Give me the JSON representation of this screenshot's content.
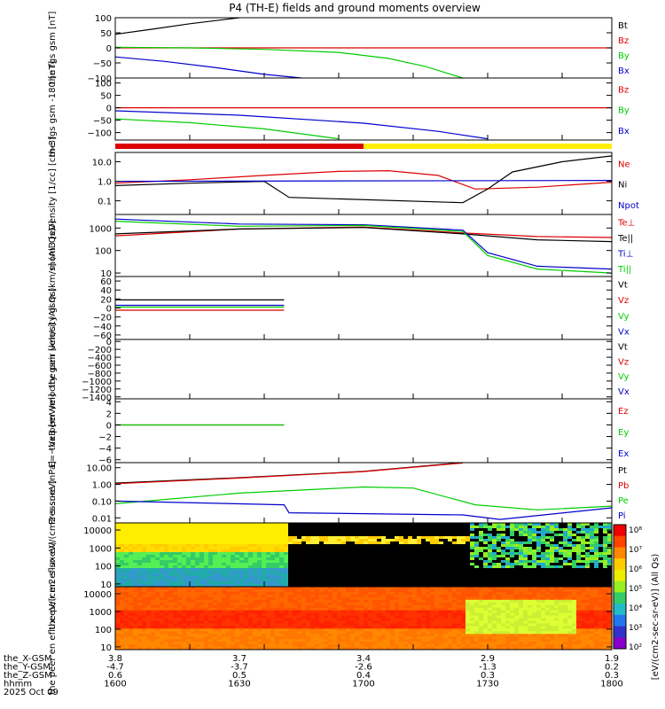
{
  "title": "P4 (TH-E) fields and ground moments overview",
  "footer": {
    "rows": [
      {
        "label": "the_X-GSM",
        "values": [
          "3.8",
          "3.7",
          "3.4",
          "2.9",
          "1.9"
        ]
      },
      {
        "label": "the_Y-GSM",
        "values": [
          "-4.7",
          "-3.7",
          "-2.6",
          "-1.3",
          "0.2"
        ]
      },
      {
        "label": "the_Z-GSM",
        "values": [
          "0.6",
          "0.5",
          "0.4",
          "0.3",
          "0.3"
        ]
      },
      {
        "label": "hhmm",
        "values": [
          "1600",
          "1630",
          "1700",
          "1730",
          "1800"
        ]
      }
    ],
    "date": "2025 Oct 09"
  },
  "colorbar": {
    "label": "[eV/(cm2-sec-sr-eV)] (All Qs)",
    "ticks": [
      "10⁸",
      "10⁷",
      "10⁶",
      "10⁵",
      "10⁴",
      "10³",
      "10²"
    ]
  },
  "chart_data": [
    {
      "type": "line",
      "panel": "fgs_gsm",
      "ylabel": "the fgs gsm [nT]",
      "ylim": [
        -100,
        100
      ],
      "yticks": [
        "100",
        "50",
        "0",
        "−50",
        "−100"
      ],
      "legend": [
        "Bt",
        "Bz",
        "By",
        "Bx"
      ],
      "legend_colors": [
        "#000000",
        "#dd0000",
        "#00cc00",
        "#0000cc"
      ],
      "series": [
        {
          "name": "Bt",
          "color": "#000000",
          "x": [
            1600,
            1615,
            1630,
            1645,
            1650
          ],
          "y": [
            45,
            62,
            80,
            95,
            100
          ]
        },
        {
          "name": "Bz",
          "color": "#dd0000",
          "x": [
            1600,
            1800
          ],
          "y": [
            0,
            0
          ]
        },
        {
          "name": "By",
          "color": "#00cc00",
          "x": [
            1600,
            1630,
            1660,
            1690,
            1710,
            1725,
            1740
          ],
          "y": [
            2,
            0,
            -5,
            -15,
            -35,
            -62,
            -100
          ]
        },
        {
          "name": "Bx",
          "color": "#0000cc",
          "x": [
            1600,
            1620,
            1640,
            1660,
            1675
          ],
          "y": [
            -30,
            -45,
            -65,
            -88,
            -100
          ]
        }
      ]
    },
    {
      "type": "line",
      "panel": "fgs_gsm_fac",
      "ylabel": "the fgs gsm -180 [nT]",
      "ylim": [
        -130,
        120
      ],
      "yticks": [
        "100",
        "50",
        "0",
        "−50",
        "−100"
      ],
      "legend": [
        "Bz",
        "By",
        "Bx"
      ],
      "legend_colors": [
        "#dd0000",
        "#00cc00",
        "#0000cc"
      ],
      "series": [
        {
          "name": "Bz",
          "color": "#dd0000",
          "x": [
            1600,
            1800
          ],
          "y": [
            0,
            0
          ]
        },
        {
          "name": "By",
          "color": "#00cc00",
          "x": [
            1600,
            1630,
            1660,
            1690
          ],
          "y": [
            -45,
            -60,
            -85,
            -125
          ]
        },
        {
          "name": "Bx",
          "color": "#0000cc",
          "x": [
            1600,
            1650,
            1700,
            1730,
            1750
          ],
          "y": [
            -12,
            -30,
            -62,
            -95,
            -125
          ]
        }
      ]
    },
    {
      "type": "line",
      "panel": "density",
      "ylabel": "Density [1/cc] [cm-3]",
      "yscale": "log",
      "ylim": [
        0.02,
        30
      ],
      "yticks": [
        "10.0",
        "1.0",
        "0.1"
      ],
      "legend": [
        "Ne",
        "Ni",
        "Npot"
      ],
      "legend_colors": [
        "#dd0000",
        "#000000",
        "#0000cc"
      ],
      "series": [
        {
          "name": "Ne",
          "color": "#dd0000",
          "x": [
            1600,
            1630,
            1660,
            1690,
            1710,
            1730,
            1745,
            1770,
            1800
          ],
          "y": [
            0.8,
            1.2,
            2.0,
            3.2,
            3.5,
            2.0,
            0.4,
            0.5,
            0.9
          ]
        },
        {
          "name": "Ni",
          "color": "#000000",
          "x": [
            1600,
            1630,
            1660,
            1670,
            1740,
            1750,
            1760,
            1780,
            1800
          ],
          "y": [
            0.6,
            0.8,
            1.0,
            0.15,
            0.08,
            0.4,
            3.0,
            10,
            20
          ]
        },
        {
          "name": "Npot",
          "color": "#0000cc",
          "x": [
            1600,
            1800
          ],
          "y": [
            1.0,
            1.1
          ]
        }
      ]
    },
    {
      "type": "line",
      "panel": "temperature",
      "ylabel": "mom3 [eV]",
      "yscale": "log",
      "ylim": [
        7,
        4000
      ],
      "yticks": [
        "1000",
        "100",
        "10"
      ],
      "legend": [
        "Te⊥",
        "Te||",
        "Ti⊥",
        "Ti||"
      ],
      "legend_colors": [
        "#dd0000",
        "#000000",
        "#0000cc",
        "#00cc00"
      ],
      "series": [
        {
          "name": "Te⊥",
          "color": "#dd0000",
          "x": [
            1600,
            1650,
            1700,
            1740,
            1770,
            1800
          ],
          "y": [
            450,
            900,
            1100,
            600,
            420,
            380
          ]
        },
        {
          "name": "Te||",
          "color": "#000000",
          "x": [
            1600,
            1650,
            1700,
            1740,
            1770,
            1800
          ],
          "y": [
            550,
            900,
            1050,
            550,
            300,
            250
          ]
        },
        {
          "name": "Ti⊥",
          "color": "#0000cc",
          "x": [
            1600,
            1650,
            1700,
            1740,
            1750,
            1770,
            1800
          ],
          "y": [
            2500,
            1500,
            1400,
            800,
            80,
            20,
            15
          ]
        },
        {
          "name": "Ti||",
          "color": "#00cc00",
          "x": [
            1600,
            1650,
            1700,
            1740,
            1750,
            1770,
            1800
          ],
          "y": [
            2000,
            1200,
            1300,
            700,
            60,
            15,
            10
          ]
        }
      ]
    },
    {
      "type": "line",
      "panel": "peir_velocity",
      "ylabel": "the peir velocity gsm [km/s] (All Qs)",
      "ylim": [
        -70,
        70
      ],
      "yticks": [
        "60",
        "40",
        "20",
        "0",
        "−20",
        "−40",
        "−60"
      ],
      "legend": [
        "Vt",
        "Vz",
        "Vy",
        "Vx"
      ],
      "legend_colors": [
        "#000000",
        "#dd0000",
        "#00cc00",
        "#0000cc"
      ],
      "series": [
        {
          "name": "Vt",
          "color": "#000000",
          "x": [
            1600,
            1668
          ],
          "y": [
            18,
            18
          ]
        },
        {
          "name": "Vz",
          "color": "#dd0000",
          "x": [
            1600,
            1668
          ],
          "y": [
            -5,
            -5
          ]
        },
        {
          "name": "Vy",
          "color": "#00cc00",
          "x": [
            1600,
            1668
          ],
          "y": [
            2,
            2
          ]
        },
        {
          "name": "Vx",
          "color": "#0000cc",
          "x": [
            1600,
            1668
          ],
          "y": [
            6,
            6
          ]
        }
      ]
    },
    {
      "type": "line",
      "panel": "peer_velocity",
      "ylabel": "the peer velocity gsm [km/s] (All Qs)",
      "ylim": [
        -1450,
        50
      ],
      "yticks": [
        "0",
        "−200",
        "−400",
        "−600",
        "−800",
        "−1000",
        "−1200",
        "−1400"
      ],
      "legend": [
        "Vt",
        "Vz",
        "Vy",
        "Vx"
      ],
      "legend_colors": [
        "#000000",
        "#dd0000",
        "#00cc00",
        "#0000cc"
      ],
      "series": []
    },
    {
      "type": "line",
      "panel": "efield",
      "ylabel": "E=−VxB [mV/m]",
      "ylim": [
        -6.5,
        4.5
      ],
      "yticks": [
        "4",
        "2",
        "0",
        "−2",
        "−4",
        "−6"
      ],
      "legend": [
        "Ez",
        "Ey",
        "Ex"
      ],
      "legend_colors": [
        "#dd0000",
        "#00cc00",
        "#0000cc"
      ],
      "series": [
        {
          "name": "Ez",
          "color": "#dd0000",
          "x": [
            1600,
            1668
          ],
          "y": [
            0,
            0
          ]
        },
        {
          "name": "Ey",
          "color": "#00cc00",
          "x": [
            1600,
            1668
          ],
          "y": [
            0,
            0
          ]
        }
      ]
    },
    {
      "type": "line",
      "panel": "pressure",
      "ylabel": "Pressure [nPa]",
      "yscale": "log",
      "ylim": [
        0.005,
        20
      ],
      "yticks": [
        "10.00",
        "1.00",
        "0.10",
        "0.01"
      ],
      "legend": [
        "Pt",
        "Pb",
        "Pe",
        "Pi"
      ],
      "legend_colors": [
        "#000000",
        "#dd0000",
        "#00cc00",
        "#0000cc"
      ],
      "series": [
        {
          "name": "Pt",
          "color": "#000000",
          "x": [
            1600,
            1650,
            1700,
            1740
          ],
          "y": [
            1.2,
            2.5,
            6.0,
            20
          ]
        },
        {
          "name": "Pb",
          "color": "#dd0000",
          "x": [
            1600,
            1650,
            1700,
            1740
          ],
          "y": [
            1.1,
            2.4,
            5.8,
            19
          ]
        },
        {
          "name": "Pe",
          "color": "#00cc00",
          "x": [
            1600,
            1650,
            1700,
            1720,
            1745,
            1770,
            1800
          ],
          "y": [
            0.07,
            0.3,
            0.7,
            0.6,
            0.06,
            0.03,
            0.05
          ]
        },
        {
          "name": "Pi",
          "color": "#0000cc",
          "x": [
            1600,
            1668,
            1670,
            1740,
            1755,
            1800
          ],
          "y": [
            0.1,
            0.06,
            0.02,
            0.015,
            0.008,
            0.04
          ]
        }
      ]
    },
    {
      "type": "heatmap",
      "panel": "peir_eflux",
      "ylabel": "the peir en eflux eV/(cm2-s-sr-eV)",
      "yscale": "log",
      "ylim": [
        7,
        25000
      ],
      "yticks": [
        "10000",
        "1000",
        "100",
        "10"
      ]
    },
    {
      "type": "heatmap",
      "panel": "peer_eflux",
      "ylabel": "the peer en eflux eV/(cm2-s-sr-eV)",
      "yscale": "log",
      "ylim": [
        7,
        25000
      ],
      "yticks": [
        "10000",
        "1000",
        "100",
        "10"
      ]
    }
  ]
}
